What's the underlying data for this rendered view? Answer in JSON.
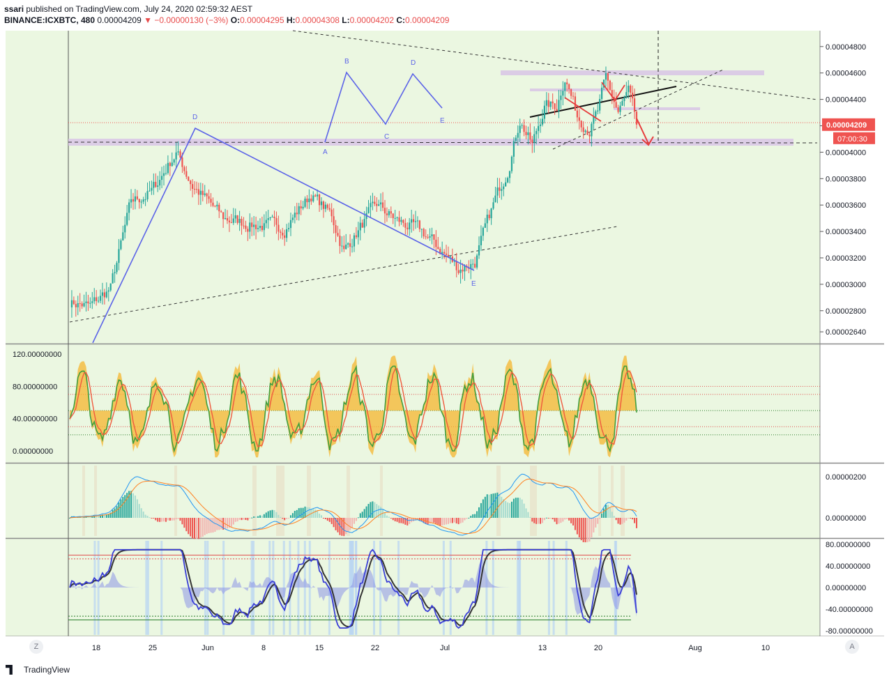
{
  "header": {
    "author": "ssari",
    "published_text": "published on TradingView.com, July 24, 2020 02:59:32 AEST",
    "symbol": "BINANCE:ICXBTC, 480",
    "last": "0.00004209",
    "change": "▼ −0.00000130 (−3%)",
    "o_label": "O:",
    "o": "0.00004295",
    "h_label": "H:",
    "h": "0.00004308",
    "l_label": "L:",
    "l": "0.00004202",
    "c_label": "C:",
    "c": "0.00004209"
  },
  "price_badge": {
    "value": "0.00004209",
    "countdown": "07:00:30"
  },
  "footer": {
    "brand": "TradingView",
    "left_button": "Z",
    "right_button": "A"
  },
  "colors": {
    "bg": "#ebf7e1",
    "up": "#26a69a",
    "down": "#ef5350",
    "pattern": "#5b63e8",
    "stoch_k": "#3f9e3f",
    "stoch_d": "#ef5a3d",
    "stoch_fill": "#f5b52e",
    "macd_fast": "#2196f3",
    "macd_slow": "#ff8020",
    "wt1": "#3a3fd6",
    "wt2": "#333333"
  },
  "chart_data": [
    {
      "type": "candlestick",
      "pane": "price",
      "x_ticks": [
        "18",
        "25",
        "Jun",
        "8",
        "15",
        "22",
        "Jul",
        "13",
        "20",
        "Aug",
        "10"
      ],
      "y_ticks": [
        "0.00004800",
        "0.00004600",
        "0.00004400",
        "0.00004200",
        "0.00004000",
        "0.00003800",
        "0.00003600",
        "0.00003400",
        "0.00003200",
        "0.00003000",
        "0.00002800",
        "0.00002640"
      ],
      "anchors": [
        {
          "t": 0,
          "v": 2.87e-05
        },
        {
          "t": 10,
          "v": 2.83e-05
        },
        {
          "t": 20,
          "v": 2.97e-05
        },
        {
          "t": 30,
          "v": 3.62e-05
        },
        {
          "t": 40,
          "v": 3.7e-05
        },
        {
          "t": 52,
          "v": 4e-05
        },
        {
          "t": 60,
          "v": 3.75e-05
        },
        {
          "t": 75,
          "v": 3.5e-05
        },
        {
          "t": 90,
          "v": 3.45e-05
        },
        {
          "t": 105,
          "v": 3.43e-05
        },
        {
          "t": 118,
          "v": 3.68e-05
        },
        {
          "t": 128,
          "v": 3.52e-05
        },
        {
          "t": 134,
          "v": 3.25e-05
        },
        {
          "t": 142,
          "v": 3.43e-05
        },
        {
          "t": 150,
          "v": 3.6e-05
        },
        {
          "t": 160,
          "v": 3.48e-05
        },
        {
          "t": 172,
          "v": 3.4e-05
        },
        {
          "t": 182,
          "v": 3.25e-05
        },
        {
          "t": 190,
          "v": 3.12e-05
        },
        {
          "t": 198,
          "v": 3.17e-05
        },
        {
          "t": 207,
          "v": 3.6e-05
        },
        {
          "t": 214,
          "v": 3.88e-05
        },
        {
          "t": 220,
          "v": 4.25e-05
        },
        {
          "t": 226,
          "v": 4.05e-05
        },
        {
          "t": 232,
          "v": 4.35e-05
        },
        {
          "t": 238,
          "v": 4.35e-05
        },
        {
          "t": 242,
          "v": 4.58e-05
        },
        {
          "t": 248,
          "v": 4.28e-05
        },
        {
          "t": 254,
          "v": 4.18e-05
        },
        {
          "t": 258,
          "v": 4.3e-05
        },
        {
          "t": 262,
          "v": 4.55e-05
        },
        {
          "t": 268,
          "v": 4.3e-05
        },
        {
          "t": 273,
          "v": 4.45e-05
        },
        {
          "t": 277,
          "v": 4.21e-05
        }
      ],
      "last_price": 4.209e-05,
      "wave_left": {
        "labels": [
          "D",
          "E"
        ]
      },
      "wave_right": {
        "labels": [
          "A",
          "B",
          "C",
          "D",
          "E"
        ]
      }
    },
    {
      "type": "line",
      "pane": "stochastic",
      "y_ticks": [
        "120.00000000",
        "80.00000000",
        "40.00000000",
        "0.00000000"
      ],
      "ylim": [
        -15,
        125
      ],
      "levels": [
        80,
        70,
        50,
        30,
        20
      ]
    },
    {
      "type": "line",
      "pane": "macd",
      "y_ticks": [
        "0.00000200",
        "0.00000000"
      ]
    },
    {
      "type": "line",
      "pane": "wavetrend",
      "y_ticks": [
        "80.00000000",
        "40.00000000",
        "0.00000000",
        "-40.00000000",
        "-80.00000000"
      ],
      "ylim": [
        -90,
        90
      ],
      "levels": [
        60,
        53,
        -53,
        -60
      ]
    }
  ]
}
